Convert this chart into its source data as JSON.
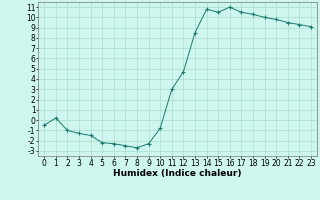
{
  "x": [
    0,
    1,
    2,
    3,
    4,
    5,
    6,
    7,
    8,
    9,
    10,
    11,
    12,
    13,
    14,
    15,
    16,
    17,
    18,
    19,
    20,
    21,
    22,
    23
  ],
  "y": [
    -0.5,
    0.2,
    -1.0,
    -1.3,
    -1.5,
    -2.2,
    -2.3,
    -2.5,
    -2.7,
    -2.3,
    -0.8,
    3.0,
    4.7,
    8.5,
    10.8,
    10.5,
    11.0,
    10.5,
    10.3,
    10.0,
    9.8,
    9.5,
    9.3,
    9.1
  ],
  "line_color": "#1a7a6e",
  "marker": "+",
  "bg_color": "#cef5ee",
  "grid_color": "#aaddcc",
  "xlabel": "Humidex (Indice chaleur)",
  "xlabel_fontsize": 6.5,
  "tick_fontsize": 5.5,
  "ylim": [
    -3.5,
    11.5
  ],
  "xlim": [
    -0.5,
    23.5
  ],
  "yticks": [
    -3,
    -2,
    -1,
    0,
    1,
    2,
    3,
    4,
    5,
    6,
    7,
    8,
    9,
    10,
    11
  ],
  "xticks": [
    0,
    1,
    2,
    3,
    4,
    5,
    6,
    7,
    8,
    9,
    10,
    11,
    12,
    13,
    14,
    15,
    16,
    17,
    18,
    19,
    20,
    21,
    22,
    23
  ]
}
